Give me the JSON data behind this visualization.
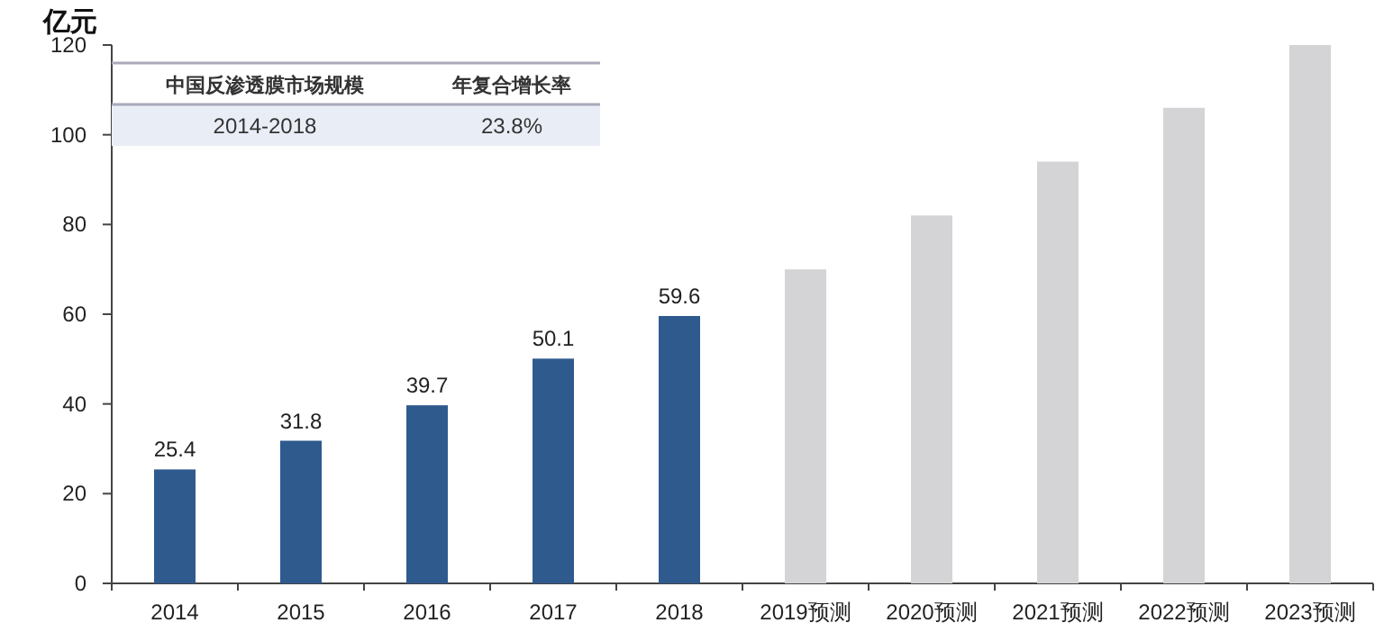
{
  "chart_data": {
    "type": "bar",
    "ylabel": "亿元",
    "categories": [
      "2014",
      "2015",
      "2016",
      "2017",
      "2018",
      "2019预测",
      "2020预测",
      "2021预测",
      "2022预测",
      "2023预测"
    ],
    "values": [
      25.4,
      31.8,
      39.7,
      50.1,
      59.6,
      70,
      82,
      94,
      106,
      120
    ],
    "colors": [
      "#2f5a8e",
      "#2f5a8e",
      "#2f5a8e",
      "#2f5a8e",
      "#2f5a8e",
      "#d4d4d6",
      "#d4d4d6",
      "#d4d4d6",
      "#d4d4d6",
      "#d4d4d6"
    ],
    "value_labels": [
      "25.4",
      "31.8",
      "39.7",
      "50.1",
      "59.6",
      null,
      null,
      null,
      null,
      null
    ],
    "ylim": [
      0,
      120
    ],
    "yticks": [
      0,
      20,
      40,
      60,
      80,
      100,
      120
    ],
    "grid": false,
    "annotations": [
      "中国反渗透膜市场规模",
      "年复合增长率",
      "2014-2018",
      "23.8%"
    ]
  }
}
